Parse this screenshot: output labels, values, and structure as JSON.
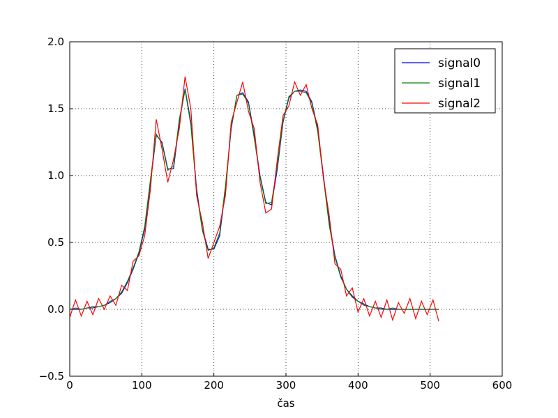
{
  "chart_data": {
    "type": "line",
    "x_label": "čas",
    "x": [
      0,
      8,
      16,
      24,
      32,
      40,
      48,
      56,
      64,
      72,
      80,
      88,
      96,
      104,
      112,
      120,
      128,
      136,
      144,
      152,
      160,
      168,
      176,
      184,
      192,
      200,
      208,
      216,
      224,
      232,
      240,
      248,
      256,
      264,
      272,
      280,
      288,
      296,
      304,
      312,
      320,
      328,
      336,
      344,
      352,
      360,
      368,
      376,
      384,
      392,
      400,
      408,
      416,
      424,
      432,
      440,
      448,
      456,
      464,
      472,
      480,
      488,
      496,
      504,
      512
    ],
    "series": [
      {
        "name": "signal0",
        "color": "#0000ff",
        "values": [
          0,
          0,
          0,
          0.01,
          0.01,
          0.02,
          0.03,
          0.05,
          0.08,
          0.12,
          0.2,
          0.3,
          0.42,
          0.6,
          0.95,
          1.3,
          1.25,
          1.05,
          1.05,
          1.4,
          1.65,
          1.4,
          0.9,
          0.6,
          0.45,
          0.45,
          0.55,
          0.9,
          1.35,
          1.6,
          1.62,
          1.55,
          1.3,
          1.0,
          0.8,
          0.78,
          1.05,
          1.4,
          1.58,
          1.63,
          1.64,
          1.63,
          1.55,
          1.35,
          1.0,
          0.65,
          0.4,
          0.25,
          0.15,
          0.1,
          0.06,
          0.04,
          0.02,
          0.01,
          0.01,
          0,
          0,
          0,
          0,
          0,
          0,
          0,
          0,
          0,
          0
        ]
      },
      {
        "name": "signal1",
        "color": "#008000",
        "values": [
          0,
          0.01,
          0,
          0.01,
          0.02,
          0.02,
          0.03,
          0.06,
          0.08,
          0.13,
          0.21,
          0.31,
          0.43,
          0.62,
          0.97,
          1.31,
          1.24,
          1.04,
          1.07,
          1.42,
          1.64,
          1.38,
          0.88,
          0.59,
          0.44,
          0.46,
          0.57,
          0.92,
          1.36,
          1.6,
          1.61,
          1.54,
          1.28,
          0.99,
          0.79,
          0.8,
          1.07,
          1.41,
          1.59,
          1.63,
          1.63,
          1.62,
          1.54,
          1.33,
          0.98,
          0.63,
          0.39,
          0.24,
          0.15,
          0.09,
          0.06,
          0.03,
          0.02,
          0.01,
          0,
          0,
          0.01,
          0,
          0,
          0,
          0,
          0,
          0,
          0,
          0
        ]
      },
      {
        "name": "signal2",
        "color": "#ff0000",
        "values": [
          -0.06,
          0.07,
          -0.05,
          0.06,
          -0.04,
          0.08,
          0.0,
          0.1,
          0.03,
          0.18,
          0.14,
          0.36,
          0.4,
          0.55,
          0.9,
          1.42,
          1.2,
          0.95,
          1.12,
          1.35,
          1.74,
          1.5,
          0.85,
          0.65,
          0.38,
          0.5,
          0.62,
          0.85,
          1.4,
          1.55,
          1.7,
          1.48,
          1.35,
          0.95,
          0.72,
          0.75,
          1.12,
          1.45,
          1.52,
          1.7,
          1.6,
          1.68,
          1.5,
          1.38,
          0.98,
          0.7,
          0.34,
          0.3,
          0.1,
          0.16,
          -0.02,
          0.08,
          -0.05,
          0.06,
          -0.06,
          0.07,
          -0.08,
          0.05,
          -0.03,
          0.08,
          -0.07,
          0.06,
          -0.04,
          0.07,
          -0.09
        ]
      }
    ],
    "xlim": [
      0,
      600
    ],
    "xticks": [
      0,
      100,
      200,
      300,
      400,
      500,
      600
    ],
    "ylim": [
      -0.5,
      2.0
    ],
    "yticks": [
      {
        "value": -0.5,
        "label": "−0.5"
      },
      {
        "value": 0,
        "label": "0.0"
      },
      0.5,
      {
        "value": 1,
        "label": "1.0"
      },
      1.5,
      {
        "value": 2,
        "label": "2.0"
      }
    ],
    "grid": true,
    "legend": "upper right"
  }
}
